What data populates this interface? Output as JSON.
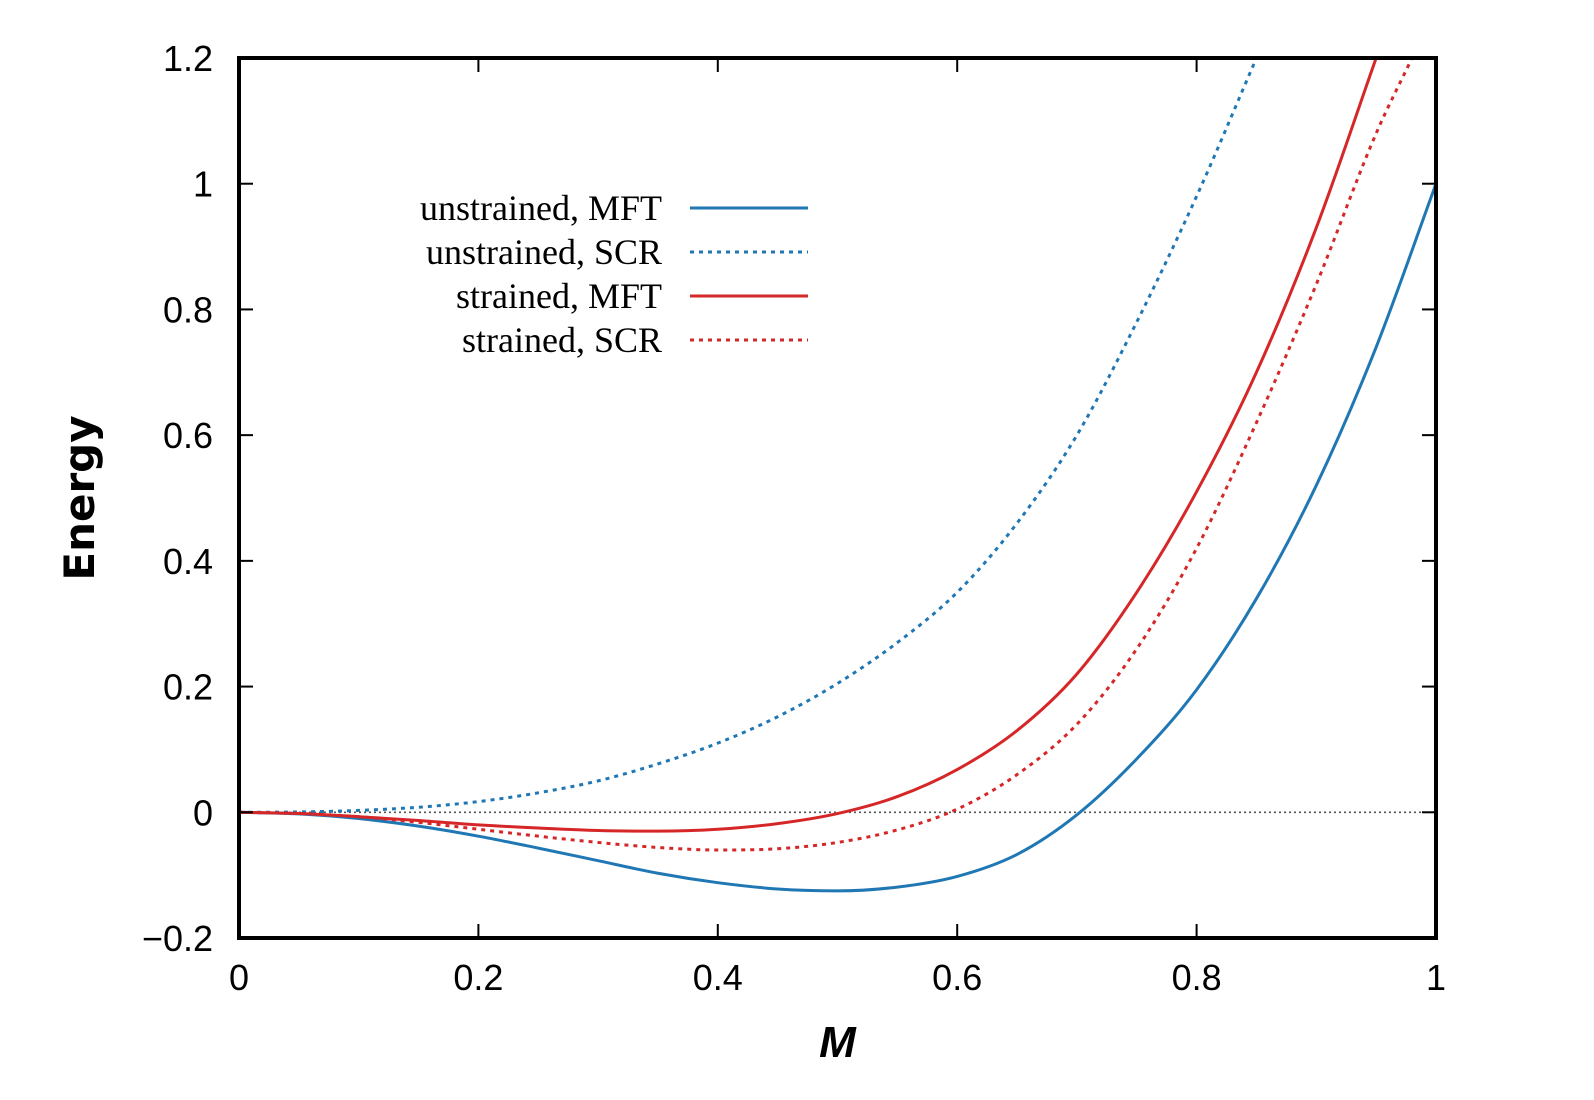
{
  "chart_data": {
    "type": "line",
    "title": "",
    "xlabel": "M",
    "ylabel": "Energy",
    "xlim": [
      0,
      1
    ],
    "ylim": [
      -0.2,
      1.2
    ],
    "xticks": [
      0,
      0.2,
      0.4,
      0.6,
      0.8,
      1
    ],
    "xtick_labels": [
      "0",
      "0.2",
      "0.4",
      "0.6",
      "0.8",
      "1"
    ],
    "yticks": [
      -0.2,
      0,
      0.2,
      0.4,
      0.6,
      0.8,
      1,
      1.2
    ],
    "ytick_labels": [
      "−0.2",
      "0",
      "0.2",
      "0.4",
      "0.6",
      "0.8",
      "1",
      "1.2"
    ],
    "grid": false,
    "legend_position": "top-left",
    "reference_line": {
      "y": 0,
      "style": "dotted",
      "color": "#555555"
    },
    "series": [
      {
        "name": "unstrained, MFT",
        "color": "#1f77b4",
        "style": "solid",
        "x": [
          0,
          0.05,
          0.1,
          0.15,
          0.2,
          0.25,
          0.3,
          0.35,
          0.4,
          0.45,
          0.5,
          0.55,
          0.6,
          0.65,
          0.7,
          0.75,
          0.8,
          0.85,
          0.9,
          0.95,
          1.0
        ],
        "y": [
          0,
          -0.0025,
          -0.01,
          -0.022,
          -0.038,
          -0.057,
          -0.077,
          -0.097,
          -0.112,
          -0.122,
          -0.125,
          -0.119,
          -0.102,
          -0.067,
          -0.004,
          0.085,
          0.195,
          0.34,
          0.52,
          0.74,
          1.0
        ]
      },
      {
        "name": "unstrained, SCR",
        "color": "#1f77b4",
        "style": "dotted",
        "x": [
          0,
          0.05,
          0.1,
          0.15,
          0.2,
          0.25,
          0.3,
          0.35,
          0.4,
          0.45,
          0.5,
          0.55,
          0.6,
          0.65,
          0.7,
          0.75,
          0.8,
          0.85
        ],
        "y": [
          0,
          0.0005,
          0.003,
          0.008,
          0.017,
          0.031,
          0.05,
          0.077,
          0.11,
          0.152,
          0.205,
          0.27,
          0.35,
          0.46,
          0.6,
          0.78,
          0.98,
          1.2
        ]
      },
      {
        "name": "strained, MFT",
        "color": "#d62728",
        "style": "solid",
        "x": [
          0,
          0.05,
          0.1,
          0.15,
          0.2,
          0.25,
          0.3,
          0.35,
          0.4,
          0.45,
          0.5,
          0.55,
          0.6,
          0.65,
          0.7,
          0.75,
          0.8,
          0.85,
          0.9,
          0.95
        ],
        "y": [
          0,
          -0.002,
          -0.007,
          -0.013,
          -0.02,
          -0.025,
          -0.029,
          -0.03,
          -0.027,
          -0.018,
          -0.002,
          0.025,
          0.068,
          0.13,
          0.22,
          0.35,
          0.51,
          0.7,
          0.93,
          1.2
        ]
      },
      {
        "name": "strained, SCR",
        "color": "#d62728",
        "style": "dotted",
        "x": [
          0,
          0.05,
          0.1,
          0.15,
          0.2,
          0.25,
          0.3,
          0.35,
          0.4,
          0.45,
          0.5,
          0.55,
          0.6,
          0.65,
          0.7,
          0.75,
          0.8,
          0.85,
          0.9,
          0.95,
          0.98
        ],
        "y": [
          0,
          -0.002,
          -0.007,
          -0.016,
          -0.027,
          -0.038,
          -0.048,
          -0.056,
          -0.06,
          -0.058,
          -0.048,
          -0.028,
          0.005,
          0.06,
          0.14,
          0.26,
          0.42,
          0.62,
          0.84,
          1.08,
          1.2
        ]
      }
    ]
  }
}
